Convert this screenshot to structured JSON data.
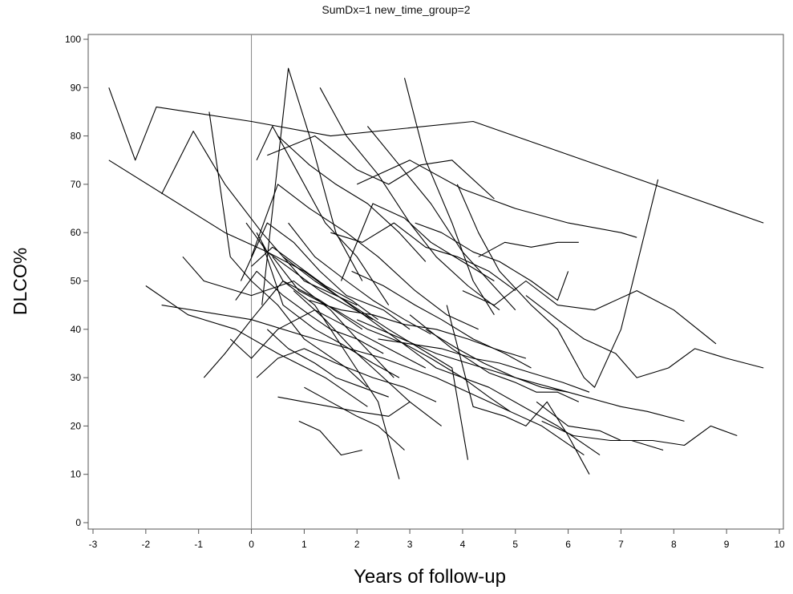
{
  "chart_data": {
    "type": "line",
    "title": "SumDx=1 new_time_group=2",
    "xlabel": "Years of follow-up",
    "ylabel": "DLCO%",
    "xlim": [
      -3,
      10
    ],
    "ylim": [
      0,
      100
    ],
    "xticks": [
      "-3",
      "-2",
      "-1",
      "0",
      "1",
      "2",
      "3",
      "4",
      "5",
      "6",
      "7",
      "8",
      "9",
      "10"
    ],
    "yticks": [
      "0",
      "10",
      "20",
      "30",
      "40",
      "50",
      "60",
      "70",
      "80",
      "90",
      "100"
    ],
    "reference_line_x": 0,
    "grid": false,
    "legend": "none",
    "line_color": "#000000",
    "series": [
      {
        "x": [
          -2.7,
          -2.2,
          -1.8,
          0,
          1.5,
          4.2,
          9.7
        ],
        "y": [
          90,
          75,
          86,
          83,
          80,
          83,
          62
        ]
      },
      {
        "x": [
          -2.7,
          -0.5,
          0.3,
          1.0,
          2.5,
          3.5,
          4.5,
          5.8,
          6.6
        ],
        "y": [
          75,
          60,
          56,
          52,
          40,
          32,
          28,
          20,
          14
        ]
      },
      {
        "x": [
          -1.7,
          -1.1,
          -0.5,
          0.2,
          1.0,
          2.0
        ],
        "y": [
          68,
          81,
          70,
          60,
          50,
          45
        ]
      },
      {
        "x": [
          -0.8,
          -0.4,
          0,
          0.5,
          1.0,
          1.8,
          2.2
        ],
        "y": [
          85,
          55,
          50,
          45,
          38,
          32,
          28
        ]
      },
      {
        "x": [
          -1.3,
          -0.9,
          0,
          0.8,
          1.5,
          2.0,
          2.7
        ],
        "y": [
          55,
          50,
          47,
          50,
          44,
          38,
          30
        ]
      },
      {
        "x": [
          -2.0,
          -1.2,
          -0.3,
          0.5,
          1.4,
          2.2
        ],
        "y": [
          49,
          43,
          40,
          35,
          30,
          24
        ]
      },
      {
        "x": [
          -1.7,
          0,
          1.2,
          2.5,
          3.5,
          4.5,
          5.5,
          6.3
        ],
        "y": [
          45,
          42,
          38,
          34,
          30,
          25,
          20,
          14
        ]
      },
      {
        "x": [
          -0.9,
          -0.5,
          0,
          0.6,
          1.3,
          2.1
        ],
        "y": [
          30,
          35,
          42,
          50,
          46,
          40
        ]
      },
      {
        "x": [
          0.1,
          0.6,
          1.2,
          1.8,
          2.4,
          2.8
        ],
        "y": [
          60,
          50,
          45,
          35,
          25,
          9
        ]
      },
      {
        "x": [
          0.2,
          0.7,
          1.1,
          1.6,
          2.1
        ],
        "y": [
          45,
          94,
          80,
          60,
          50
        ]
      },
      {
        "x": [
          0.1,
          0.4,
          0.9,
          1.4,
          2.0,
          2.6
        ],
        "y": [
          75,
          82,
          72,
          62,
          55,
          45
        ]
      },
      {
        "x": [
          0.3,
          1.2,
          2.0,
          2.6,
          3.2,
          3.8,
          4.6
        ],
        "y": [
          76,
          80,
          73,
          70,
          74,
          75,
          67
        ]
      },
      {
        "x": [
          2.0,
          3.0,
          4.0,
          5.0,
          6.0,
          7.0,
          7.3
        ],
        "y": [
          70,
          75,
          69,
          65,
          62,
          60,
          59
        ]
      },
      {
        "x": [
          3.9,
          4.3,
          4.7,
          5.3,
          5.8,
          6.3,
          6.5,
          7.0,
          7.7
        ],
        "y": [
          70,
          60,
          52,
          45,
          40,
          30,
          28,
          40,
          71
        ]
      },
      {
        "x": [
          2.9,
          3.3,
          3.8,
          4.2,
          4.6
        ],
        "y": [
          92,
          75,
          62,
          50,
          43
        ]
      },
      {
        "x": [
          4.0,
          4.6,
          5.2,
          5.8,
          6.5,
          7.3,
          8.0,
          8.8
        ],
        "y": [
          48,
          45,
          50,
          45,
          44,
          48,
          44,
          37
        ]
      },
      {
        "x": [
          5.2,
          5.8,
          6.3,
          6.9,
          7.3,
          7.9,
          8.4,
          9.0,
          9.7
        ],
        "y": [
          47,
          42,
          38,
          35,
          30,
          32,
          36,
          34,
          32
        ]
      },
      {
        "x": [
          3.0,
          3.8,
          4.5,
          5.0,
          5.4,
          5.8,
          6.2
        ],
        "y": [
          43,
          36,
          31,
          29,
          27,
          27,
          25
        ]
      },
      {
        "x": [
          2.0,
          3.5,
          5.0,
          6.0,
          7.0,
          7.5,
          8.2
        ],
        "y": [
          42,
          35,
          30,
          27,
          24,
          23,
          21
        ]
      },
      {
        "x": [
          5.4,
          6.0,
          6.6,
          7.0,
          7.6,
          8.2,
          8.7,
          9.2
        ],
        "y": [
          25,
          20,
          19,
          17,
          17,
          16,
          20,
          18
        ]
      },
      {
        "x": [
          5.5,
          6.1,
          6.8,
          7.2,
          7.8
        ],
        "y": [
          21,
          18,
          17,
          17,
          15
        ]
      },
      {
        "x": [
          0.4,
          0.9,
          1.6,
          2.2,
          2.9,
          3.4,
          4.0,
          4.5,
          4.9
        ],
        "y": [
          55,
          48,
          44,
          40,
          37,
          34,
          30,
          26,
          23
        ]
      },
      {
        "x": [
          0.6,
          1.2,
          1.9,
          2.6,
          3.2,
          3.8,
          4.1
        ],
        "y": [
          55,
          50,
          45,
          40,
          36,
          32,
          13
        ]
      },
      {
        "x": [
          3.7,
          4.2,
          4.8,
          5.2,
          5.6,
          6.0,
          6.4
        ],
        "y": [
          45,
          24,
          22,
          20,
          25,
          18,
          10
        ]
      },
      {
        "x": [
          0.8,
          1.4,
          2.0,
          2.5,
          3.0,
          3.6
        ],
        "y": [
          48,
          42,
          35,
          30,
          25,
          20
        ]
      },
      {
        "x": [
          1.0,
          1.5,
          2.0,
          2.4,
          2.9
        ],
        "y": [
          28,
          25,
          22,
          20,
          15
        ]
      },
      {
        "x": [
          0.5,
          1.0,
          1.5,
          2.0,
          2.6,
          3.0
        ],
        "y": [
          26,
          25,
          24,
          23,
          22,
          25
        ]
      },
      {
        "x": [
          0.9,
          1.3,
          1.7,
          2.1
        ],
        "y": [
          21,
          19,
          14,
          15
        ]
      },
      {
        "x": [
          -0.2,
          0.3,
          0.8,
          1.3,
          1.8,
          2.5,
          3.0
        ],
        "y": [
          50,
          62,
          58,
          52,
          47,
          44,
          40
        ]
      },
      {
        "x": [
          0,
          0.5,
          1.1,
          1.8,
          2.4,
          3.1,
          3.7,
          4.3
        ],
        "y": [
          55,
          70,
          65,
          60,
          55,
          48,
          43,
          40
        ]
      },
      {
        "x": [
          1.5,
          2.1,
          2.7,
          3.3,
          3.9,
          4.5,
          5.0
        ],
        "y": [
          60,
          58,
          62,
          57,
          55,
          52,
          48
        ]
      },
      {
        "x": [
          1.7,
          2.3,
          2.9,
          3.4,
          4.0,
          4.6
        ],
        "y": [
          50,
          66,
          63,
          58,
          54,
          50
        ]
      },
      {
        "x": [
          0.2,
          0.6,
          1.2,
          1.7,
          2.3,
          2.8
        ],
        "y": [
          58,
          45,
          40,
          37,
          33,
          30
        ]
      },
      {
        "x": [
          1.9,
          2.5,
          3.1,
          3.6,
          4.2,
          4.8,
          5.3
        ],
        "y": [
          52,
          49,
          45,
          42,
          38,
          35,
          32
        ]
      },
      {
        "x": [
          4.3,
          4.8,
          5.3,
          5.8,
          6.2
        ],
        "y": [
          55,
          58,
          57,
          58,
          58
        ]
      },
      {
        "x": [
          3.1,
          3.6,
          4.2,
          4.7,
          5.3,
          5.8,
          6.0
        ],
        "y": [
          62,
          60,
          56,
          54,
          50,
          46,
          52
        ]
      },
      {
        "x": [
          0.1,
          0.5,
          1.0,
          1.6,
          2.3,
          2.9,
          3.5
        ],
        "y": [
          30,
          34,
          36,
          33,
          30,
          28,
          25
        ]
      },
      {
        "x": [
          -0.4,
          0,
          0.5,
          1.2,
          1.9,
          2.6,
          3.3
        ],
        "y": [
          38,
          34,
          40,
          44,
          40,
          36,
          32
        ]
      },
      {
        "x": [
          2.2,
          2.8,
          3.4,
          4.0,
          4.5,
          5.0
        ],
        "y": [
          82,
          74,
          66,
          56,
          50,
          44
        ]
      },
      {
        "x": [
          1.3,
          1.8,
          2.4,
          3.0,
          3.5,
          4.1,
          4.7
        ],
        "y": [
          90,
          80,
          72,
          62,
          55,
          49,
          44
        ]
      },
      {
        "x": [
          0.5,
          1.1,
          1.6,
          2.2,
          2.8,
          3.3
        ],
        "y": [
          80,
          74,
          70,
          66,
          60,
          54
        ]
      },
      {
        "x": [
          2.4,
          3.0,
          3.6,
          4.2,
          4.7,
          5.3,
          5.9,
          6.4
        ],
        "y": [
          38,
          37,
          36,
          34,
          33,
          31,
          29,
          27
        ]
      },
      {
        "x": [
          1.1,
          1.7,
          2.3,
          2.9,
          3.5,
          4.1,
          4.6,
          5.2
        ],
        "y": [
          46,
          44,
          43,
          41,
          40,
          38,
          36,
          34
        ]
      },
      {
        "x": [
          0.3,
          0.7,
          1.2,
          1.6,
          2.1,
          2.6
        ],
        "y": [
          40,
          36,
          33,
          30,
          28,
          26
        ]
      },
      {
        "x": [
          0,
          0.4,
          0.9,
          1.4,
          1.9,
          2.4
        ],
        "y": [
          53,
          57,
          53,
          49,
          46,
          42
        ]
      },
      {
        "x": [
          -0.1,
          0.3,
          0.8,
          1.3,
          1.8,
          2.3
        ],
        "y": [
          62,
          56,
          52,
          48,
          45,
          42
        ]
      },
      {
        "x": [
          0.7,
          1.2,
          1.8,
          2.3,
          2.9,
          3.4
        ],
        "y": [
          62,
          55,
          50,
          46,
          42,
          39
        ]
      },
      {
        "x": [
          3.3,
          3.9,
          4.4,
          5.0,
          5.5,
          6.0
        ],
        "y": [
          40,
          36,
          33,
          30,
          28,
          27
        ]
      },
      {
        "x": [
          -0.3,
          0.1,
          0.6,
          1.1,
          1.5,
          2.0,
          2.5
        ],
        "y": [
          46,
          52,
          47,
          43,
          40,
          38,
          35
        ]
      }
    ]
  }
}
